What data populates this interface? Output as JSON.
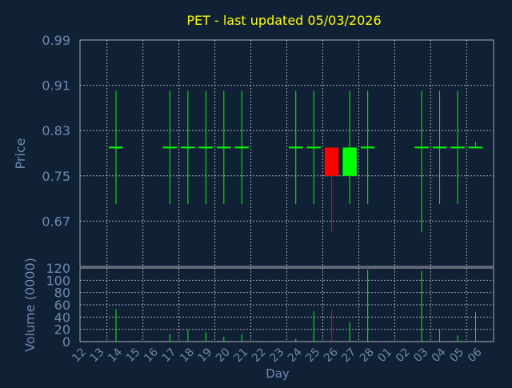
{
  "chart_data": [
    {
      "type": "candlestick",
      "title": "PET - last updated 05/03/2026",
      "xlabel": "",
      "ylabel": "Price",
      "ylim": [
        0.59,
        0.99
      ],
      "yticks": [
        "0.99",
        "0.91",
        "0.83",
        "0.75",
        "0.67"
      ],
      "grid": true,
      "categories": [
        "12",
        "13",
        "14",
        "15",
        "16",
        "17",
        "18",
        "19",
        "20",
        "21",
        "22",
        "23",
        "24",
        "25",
        "26",
        "27",
        "28",
        "01",
        "02",
        "03",
        "04",
        "05",
        "06"
      ],
      "candles": [
        {
          "x": "13",
          "open": 0.8,
          "high": 0.9,
          "low": 0.7,
          "close": 0.8
        },
        {
          "x": "16",
          "open": 0.8,
          "high": 0.9,
          "low": 0.7,
          "close": 0.8
        },
        {
          "x": "17",
          "open": 0.8,
          "high": 0.9,
          "low": 0.7,
          "close": 0.8
        },
        {
          "x": "18",
          "open": 0.8,
          "high": 0.9,
          "low": 0.7,
          "close": 0.8
        },
        {
          "x": "19",
          "open": 0.8,
          "high": 0.9,
          "low": 0.7,
          "close": 0.8
        },
        {
          "x": "20",
          "open": 0.8,
          "high": 0.9,
          "low": 0.7,
          "close": 0.8
        },
        {
          "x": "23",
          "open": 0.8,
          "high": 0.9,
          "low": 0.7,
          "close": 0.8
        },
        {
          "x": "24",
          "open": 0.8,
          "high": 0.9,
          "low": 0.7,
          "close": 0.8
        },
        {
          "x": "25",
          "open": 0.8,
          "high": 0.8,
          "low": 0.65,
          "close": 0.75
        },
        {
          "x": "26",
          "open": 0.75,
          "high": 0.9,
          "low": 0.7,
          "close": 0.8
        },
        {
          "x": "27",
          "open": 0.8,
          "high": 0.9,
          "low": 0.7,
          "close": 0.8
        },
        {
          "x": "02",
          "open": 0.8,
          "high": 0.9,
          "low": 0.65,
          "close": 0.8
        },
        {
          "x": "03",
          "open": 0.8,
          "high": 0.9,
          "low": 0.7,
          "close": 0.8
        },
        {
          "x": "04",
          "open": 0.8,
          "high": 0.9,
          "low": 0.7,
          "close": 0.8
        },
        {
          "x": "05",
          "open": 0.8,
          "high": 0.81,
          "low": 0.8,
          "close": 0.8
        }
      ],
      "colors": {
        "up": "#00ff00",
        "down": "#ff0000",
        "grid": "#c8c8c8",
        "axis": "#6e8ab0",
        "title": "#ffff00",
        "background": "#102035"
      }
    },
    {
      "type": "bar",
      "title": "",
      "xlabel": "Day",
      "ylabel": "Volume (0000)",
      "ylim": [
        0,
        120
      ],
      "yticks": [
        "120",
        "100",
        "80",
        "60",
        "40",
        "20",
        "0"
      ],
      "grid": true,
      "categories": [
        "12",
        "13",
        "14",
        "15",
        "16",
        "17",
        "18",
        "19",
        "20",
        "21",
        "22",
        "23",
        "24",
        "25",
        "26",
        "27",
        "28",
        "01",
        "02",
        "03",
        "04",
        "05",
        "06"
      ],
      "values": [
        0,
        53,
        0,
        0,
        12,
        20,
        15,
        8,
        12,
        0,
        0,
        5,
        50,
        52,
        32,
        117,
        0,
        0,
        115,
        20,
        10,
        48,
        0
      ],
      "bar_colors": [
        "up",
        "up",
        "up",
        "up",
        "up",
        "up",
        "up",
        "up",
        "up",
        "up",
        "up",
        "up",
        "up",
        "down",
        "up",
        "up",
        "up",
        "up",
        "up",
        "up",
        "up",
        "up",
        "up"
      ]
    }
  ]
}
